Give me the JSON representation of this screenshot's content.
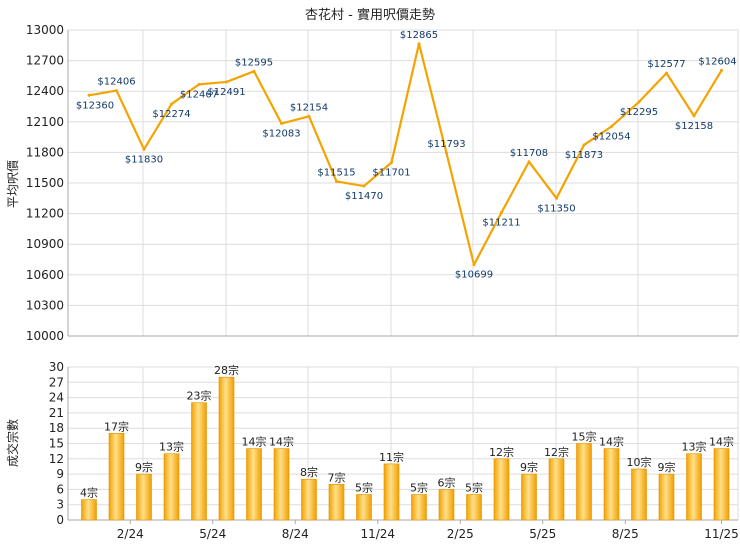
{
  "chart_data": [
    {
      "type": "line",
      "title": "杏花村 - 實用呎價走勢",
      "ylabel": "平均呎價",
      "ylim": [
        10000,
        13000
      ],
      "yticks": [
        10000,
        10300,
        10600,
        10900,
        11200,
        11500,
        11800,
        12100,
        12400,
        12700,
        13000
      ],
      "grid": true,
      "series": [
        {
          "color": "#f5a300",
          "values": [
            12360,
            12406,
            11830,
            12274,
            12467,
            12491,
            12595,
            12083,
            12154,
            11515,
            11470,
            11701,
            12865,
            11793,
            10699,
            11211,
            11708,
            11350,
            11873,
            12054,
            12295,
            12577,
            12158,
            12604
          ],
          "labels": [
            "$12360",
            "$12406",
            "$11830",
            "$12274",
            "$12467",
            "$12491",
            "$12595",
            "$12083",
            "$12154",
            "$11515",
            "$11470",
            "$11701",
            "$12865",
            "$11793",
            "$10699",
            "$11211",
            "$11708",
            "$11350",
            "$11873",
            "$12054",
            "$12295",
            "$12577",
            "$12158",
            "$12604"
          ]
        }
      ]
    },
    {
      "type": "bar",
      "ylabel": "成交宗數",
      "ylim": [
        0,
        30
      ],
      "yticks": [
        0,
        3,
        6,
        9,
        12,
        15,
        18,
        21,
        24,
        27,
        30
      ],
      "x_tick_labels": [
        "2/24",
        "5/24",
        "8/24",
        "11/24",
        "2/25",
        "5/25",
        "8/25",
        "11/25"
      ],
      "x_tick_index": [
        1.5,
        4.5,
        7.5,
        10.5,
        13.5,
        16.5,
        19.5,
        23
      ],
      "grid": true,
      "series": [
        {
          "color": "#f5a300",
          "values": [
            4,
            17,
            9,
            13,
            23,
            28,
            14,
            14,
            8,
            7,
            5,
            11,
            5,
            6,
            5,
            12,
            9,
            12,
            15,
            14,
            10,
            9,
            13,
            14
          ],
          "labels": [
            "4宗",
            "17宗",
            "9宗",
            "13宗",
            "23宗",
            "28宗",
            "14宗",
            "14宗",
            "8宗",
            "7宗",
            "5宗",
            "11宗",
            "5宗",
            "6宗",
            "5宗",
            "12宗",
            "9宗",
            "12宗",
            "15宗",
            "14宗",
            "10宗",
            "9宗",
            "13宗",
            "14宗"
          ]
        }
      ]
    }
  ]
}
